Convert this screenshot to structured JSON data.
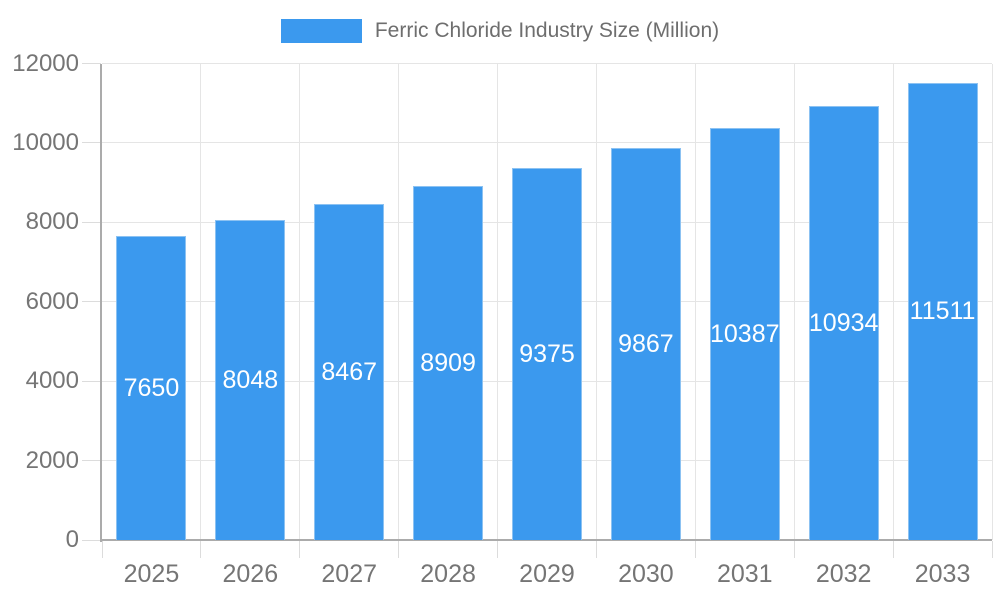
{
  "chart_data": {
    "type": "bar",
    "title": "Ferric Chloride Industry Size (Million)",
    "legend_entries": [
      "Ferric Chloride Industry Size (Million)"
    ],
    "legend_position": "top-center",
    "categories": [
      "2025",
      "2026",
      "2027",
      "2028",
      "2029",
      "2030",
      "2031",
      "2032",
      "2033"
    ],
    "series": [
      {
        "name": "Ferric Chloride Industry Size (Million)",
        "values": [
          7650,
          8048,
          8467,
          8909,
          9375,
          9867,
          10387,
          10934,
          11511
        ]
      }
    ],
    "value_labels": [
      7650,
      8048,
      8467,
      8909,
      9375,
      9867,
      10387,
      10934,
      11511
    ],
    "value_label_position": "inside-center",
    "xlabel": "",
    "ylabel": "",
    "ylim": [
      0,
      12000
    ],
    "yticks": [
      0,
      2000,
      4000,
      6000,
      8000,
      10000,
      12000
    ],
    "grid": true,
    "colors": {
      "bar": "#3B99EE",
      "bar_edge": "#8CC2F2",
      "value_label": "#FFFFFF",
      "axis_text": "#757575",
      "legend_text": "#6E6E6E",
      "grid": "#E5E5E5",
      "tick": "#DCDCDC",
      "axis_line": "#ABABAB",
      "background": "#FFFFFF"
    }
  }
}
